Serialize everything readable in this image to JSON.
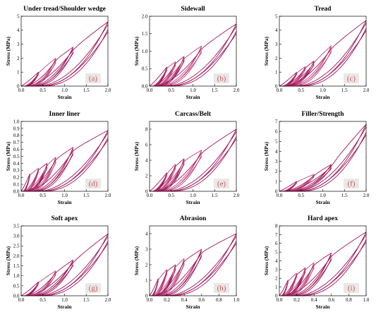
{
  "colors": {
    "curve": "#a0145a",
    "curve_light": "#c0417a",
    "label_box": "#e8e8e8",
    "label_text": "#d9534f"
  },
  "chart_data": [
    {
      "type": "line",
      "panel": "a",
      "title": "Under tread/Shoulder wedge",
      "xlabel": "Strain",
      "ylabel": "Stress (MPa)",
      "xlim": [
        0,
        2.0
      ],
      "ylim": [
        0,
        5
      ],
      "xticks": [
        "0.0",
        "0.5",
        "1.0",
        "1.5",
        "2.0"
      ],
      "yticks": [
        "0",
        "1",
        "2",
        "3",
        "4",
        "5"
      ],
      "strain_max": [
        0.4,
        0.8,
        1.2,
        2.0
      ],
      "stress_peak": [
        1.0,
        2.0,
        2.8,
        4.6
      ],
      "label": "(a)"
    },
    {
      "type": "line",
      "panel": "b",
      "title": "Sidewall",
      "xlabel": "Strain",
      "ylabel": "Stress (MPa)",
      "xlim": [
        0,
        2.0
      ],
      "ylim": [
        0,
        2.0
      ],
      "xticks": [
        "0.0",
        "0.5",
        "1.0",
        "1.5",
        "2.0"
      ],
      "yticks": [
        "0.0",
        "0.5",
        "1.0",
        "1.5",
        "2.0"
      ],
      "strain_max": [
        0.4,
        0.6,
        0.8,
        1.2,
        2.0
      ],
      "stress_peak": [
        0.55,
        0.7,
        0.85,
        1.15,
        1.78
      ],
      "label": "(b)"
    },
    {
      "type": "line",
      "panel": "c",
      "title": "Tread",
      "xlabel": "Strain",
      "ylabel": "Stress (MPa)",
      "xlim": [
        0,
        2.0
      ],
      "ylim": [
        0,
        5
      ],
      "xticks": [
        "0.0",
        "0.5",
        "1.0",
        "1.5",
        "2.0"
      ],
      "yticks": [
        "0",
        "1",
        "2",
        "3",
        "4",
        "5"
      ],
      "strain_max": [
        0.4,
        0.6,
        0.8,
        1.2,
        2.0
      ],
      "stress_peak": [
        1.0,
        1.4,
        1.8,
        2.9,
        4.7
      ],
      "label": "(c)"
    },
    {
      "type": "line",
      "panel": "d",
      "title": "Inner liner",
      "xlabel": "Strain",
      "ylabel": "Stress (MPa)",
      "xlim": [
        0,
        2.0
      ],
      "ylim": [
        0,
        1.0
      ],
      "xticks": [
        "0.0",
        "0.5",
        "1.0",
        "1.5",
        "2.0"
      ],
      "yticks": [
        "0.0",
        "0.1",
        "0.2",
        "0.3",
        "0.4",
        "0.5",
        "0.6",
        "0.7",
        "0.8",
        "0.9",
        "1.0"
      ],
      "strain_max": [
        0.2,
        0.4,
        0.6,
        0.8,
        1.2,
        2.0
      ],
      "stress_peak": [
        0.25,
        0.33,
        0.4,
        0.49,
        0.63,
        0.87
      ],
      "label": "(d)"
    },
    {
      "type": "line",
      "panel": "e",
      "title": "Carcass/Belt",
      "xlabel": "Strain",
      "ylabel": "Stress (MPa)",
      "xlim": [
        0,
        2.0
      ],
      "ylim": [
        0,
        9
      ],
      "xticks": [
        "0.0",
        "0.5",
        "1.0",
        "1.5",
        "2.0"
      ],
      "yticks": [
        "0",
        "2",
        "4",
        "6",
        "8"
      ],
      "strain_max": [
        0.4,
        0.6,
        0.8,
        1.2,
        2.0
      ],
      "stress_peak": [
        2.4,
        3.5,
        4.2,
        5.3,
        8.0
      ],
      "label": "(e)"
    },
    {
      "type": "line",
      "panel": "f",
      "title": "Filler/Strength",
      "xlabel": "Strain",
      "ylabel": "Stress (MPa)",
      "xlim": [
        0,
        2.0
      ],
      "ylim": [
        0,
        7
      ],
      "xticks": [
        "0.0",
        "0.5",
        "1.0",
        "1.5",
        "2.0"
      ],
      "yticks": [
        "0",
        "1",
        "2",
        "3",
        "4",
        "5",
        "6",
        "7"
      ],
      "strain_max": [
        0.4,
        0.8,
        1.2,
        2.0
      ],
      "stress_peak": [
        1.0,
        1.7,
        2.7,
        6.7
      ],
      "label": "(f)"
    },
    {
      "type": "line",
      "panel": "g",
      "title": "Soft apex",
      "xlabel": "Strain",
      "ylabel": "Stress (MPa)",
      "xlim": [
        0,
        2.0
      ],
      "ylim": [
        0,
        3.5
      ],
      "xticks": [
        "0.0",
        "0.5",
        "1.0",
        "1.5",
        "2.0"
      ],
      "yticks": [
        "0.0",
        "0.5",
        "1.0",
        "1.5",
        "2.0",
        "2.5",
        "3.0",
        "3.5"
      ],
      "strain_max": [
        0.4,
        0.8,
        1.2,
        2.0
      ],
      "stress_peak": [
        0.7,
        1.25,
        1.8,
        3.1
      ],
      "label": "(g)"
    },
    {
      "type": "line",
      "panel": "h",
      "title": "Abrasion",
      "xlabel": "Strain",
      "ylabel": "Stress (MPa)",
      "xlim": [
        0,
        1.0
      ],
      "ylim": [
        0,
        4.5
      ],
      "xticks": [
        "0.0",
        "0.2",
        "0.4",
        "0.6",
        "0.8",
        "1.0"
      ],
      "yticks": [
        "0",
        "1",
        "2",
        "3",
        "4"
      ],
      "strain_max": [
        0.1,
        0.2,
        0.3,
        0.4,
        0.6,
        1.0
      ],
      "stress_peak": [
        1.1,
        1.7,
        2.0,
        2.4,
        3.0,
        4.0
      ],
      "label": "(h)"
    },
    {
      "type": "line",
      "panel": "i",
      "title": "Hard apex",
      "xlabel": "Strain",
      "ylabel": "Stress (MPa)",
      "xlim": [
        0,
        1.0
      ],
      "ylim": [
        0,
        8
      ],
      "xticks": [
        "0.0",
        "0.2",
        "0.4",
        "0.6",
        "0.8",
        "1.0"
      ],
      "yticks": [
        "0",
        "1",
        "2",
        "3",
        "4",
        "5",
        "6",
        "7",
        "8"
      ],
      "strain_max": [
        0.1,
        0.2,
        0.3,
        0.4,
        0.6,
        1.0
      ],
      "stress_peak": [
        1.8,
        2.6,
        3.2,
        3.8,
        4.9,
        7.3
      ],
      "label": "(i)"
    }
  ]
}
